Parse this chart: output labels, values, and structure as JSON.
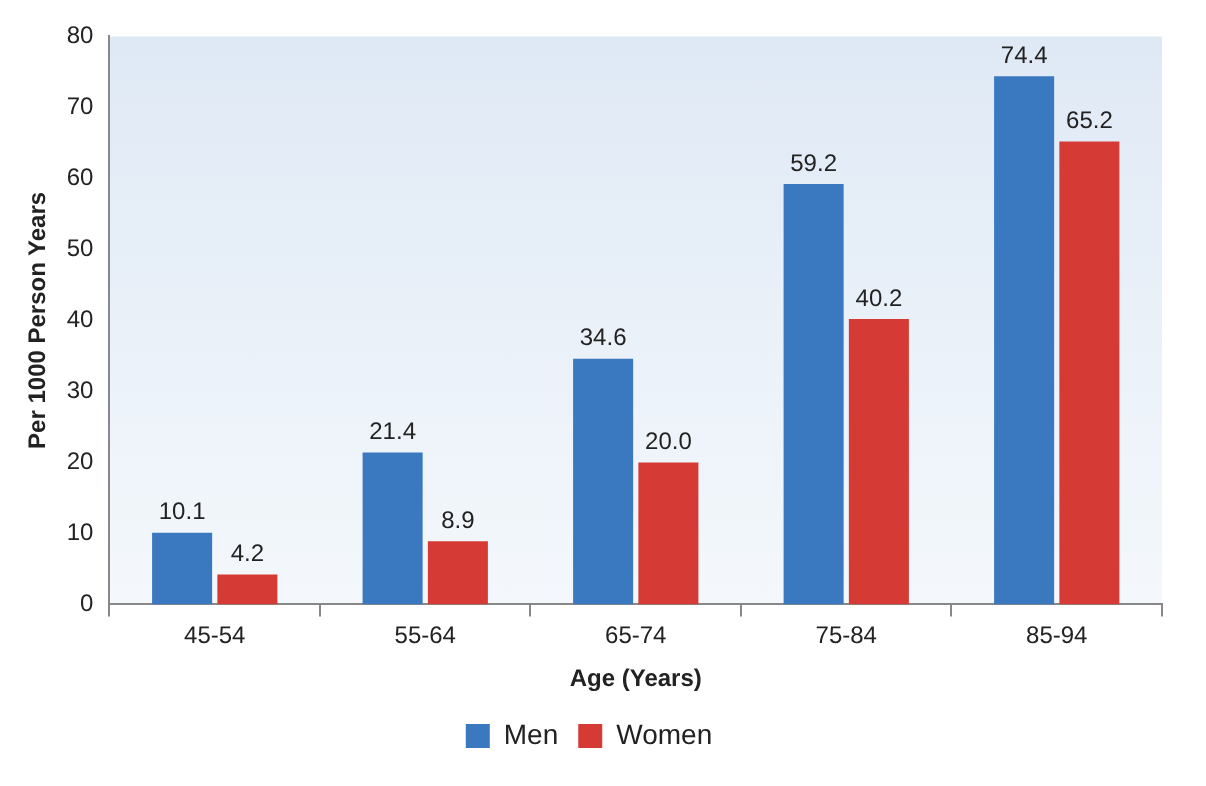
{
  "chart_data": {
    "type": "bar",
    "xlabel": "Age (Years)",
    "ylabel": "Per 1000 Person Years",
    "categories": [
      "45-54",
      "55-64",
      "65-74",
      "75-84",
      "85-94"
    ],
    "series": [
      {
        "name": "Men",
        "color": "#3a78c0",
        "values": [
          10.1,
          21.4,
          34.6,
          59.2,
          74.4
        ],
        "value_labels": [
          "10.1",
          "21.4",
          "34.6",
          "59.2",
          "74.4"
        ]
      },
      {
        "name": "Women",
        "color": "#d63a35",
        "values": [
          4.2,
          8.9,
          20.0,
          40.2,
          65.2
        ],
        "value_labels": [
          "4.2",
          "8.9",
          "20.0",
          "40.2",
          "65.2"
        ]
      }
    ],
    "ylim": [
      0,
      80
    ],
    "yticks": [
      0,
      10,
      20,
      30,
      40,
      50,
      60,
      70,
      80
    ],
    "grid": false,
    "legend": "bottom"
  }
}
